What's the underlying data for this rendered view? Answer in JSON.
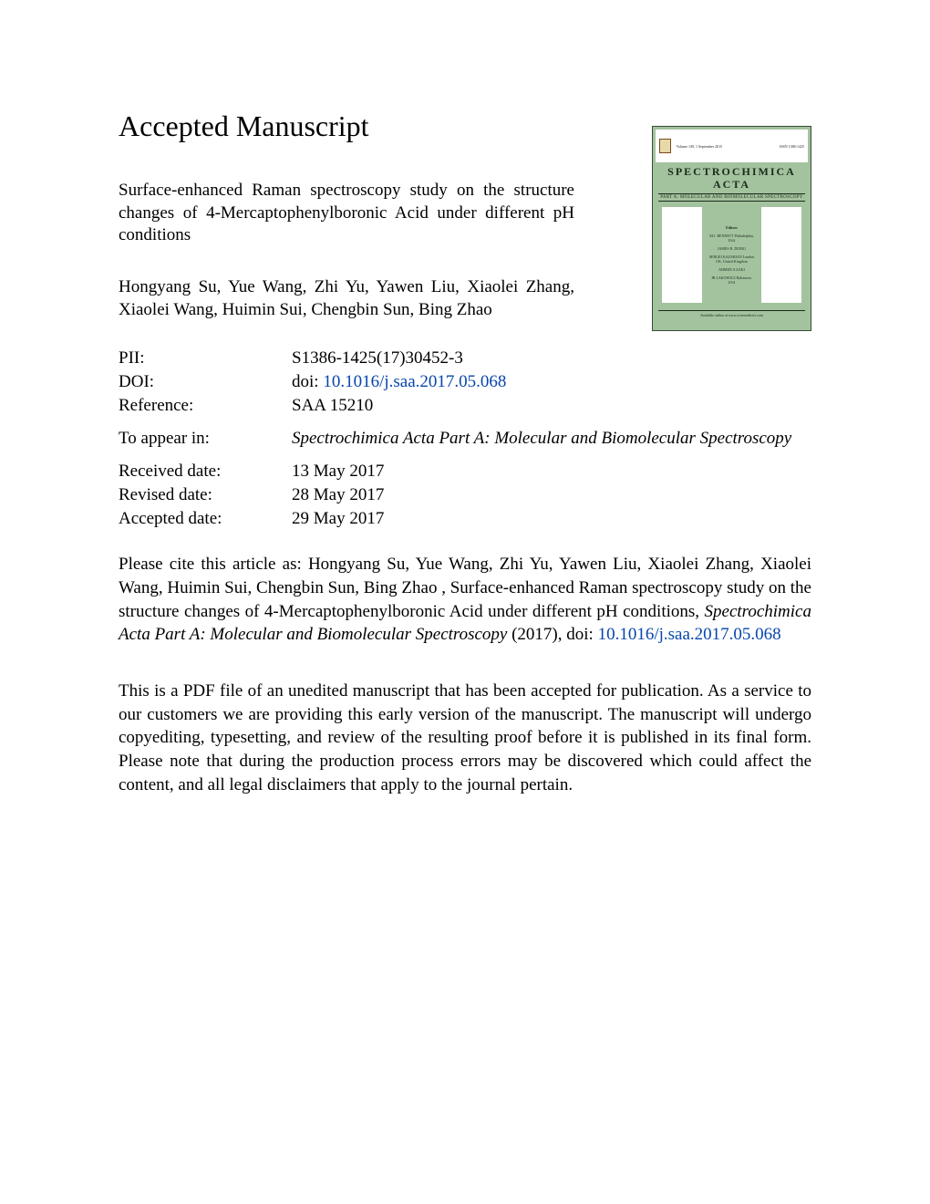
{
  "heading": "Accepted Manuscript",
  "article_title": "Surface-enhanced Raman spectroscopy study on the structure changes of 4-Mercaptophenylboronic Acid under different pH conditions",
  "authors": "Hongyang Su, Yue Wang, Zhi Yu, Yawen Liu, Xiaolei Zhang, Xiaolei Wang, Huimin Sui, Chengbin Sun, Bing Zhao",
  "cover": {
    "title_line1": "SPECTROCHIMICA",
    "title_line2": "ACTA",
    "subtitle": "PART A: MOLECULAR AND BIOMOLECULAR SPECTROSCOPY",
    "top_left": "Volume 149, 1 September 2015",
    "top_right": "ISSN 1386-1425",
    "editors_label": "Editors",
    "editors_1": "M.J. BENNETT\nPhiladelphia, USA",
    "editors_2": "JAMES R. DURIG",
    "editors_3": "SERGEI KAZARIAN\nLondon UK, United Kingdom",
    "editors_4": "AHMED A ZAKI",
    "editors_5": "JR LAKOWICZ\nBaltimore, USA",
    "footer": "Available online at www.sciencedirect.com"
  },
  "meta": {
    "pii_label": "PII:",
    "pii_value": "S1386-1425(17)30452-3",
    "doi_label": "DOI:",
    "doi_prefix": "doi: ",
    "doi_link": "10.1016/j.saa.2017.05.068",
    "reference_label": "Reference:",
    "reference_value": "SAA 15210",
    "appear_label": "To appear in:",
    "appear_value": "Spectrochimica Acta Part A: Molecular and Biomolecular Spectroscopy",
    "received_label": "Received date:",
    "received_value": "13 May 2017",
    "revised_label": "Revised date:",
    "revised_value": "28 May 2017",
    "accepted_label": "Accepted date:",
    "accepted_value": "29 May 2017"
  },
  "citation": {
    "prefix": "Please cite this article as: Hongyang Su, Yue Wang, Zhi Yu, Yawen Liu, Xiaolei Zhang, Xiaolei Wang, Huimin Sui, Chengbin Sun, Bing Zhao , Surface-enhanced Raman spectroscopy study on the structure changes of 4-Mercaptophenylboronic Acid under different pH conditions, ",
    "journal_ital": "Spectrochimica Acta Part A: Molecular and Biomolecular Spectroscopy",
    "year": " (2017), doi: ",
    "doi_link": "10.1016/j.saa.2017.05.068"
  },
  "disclaimer": "This is a PDF file of an unedited manuscript that has been accepted for publication. As a service to our customers we are providing this early version of the manuscript. The manuscript will undergo copyediting, typesetting, and review of the resulting proof before it is published in its final form. Please note that during the production process errors may be discovered which could affect the content, and all legal disclaimers that apply to the journal pertain."
}
